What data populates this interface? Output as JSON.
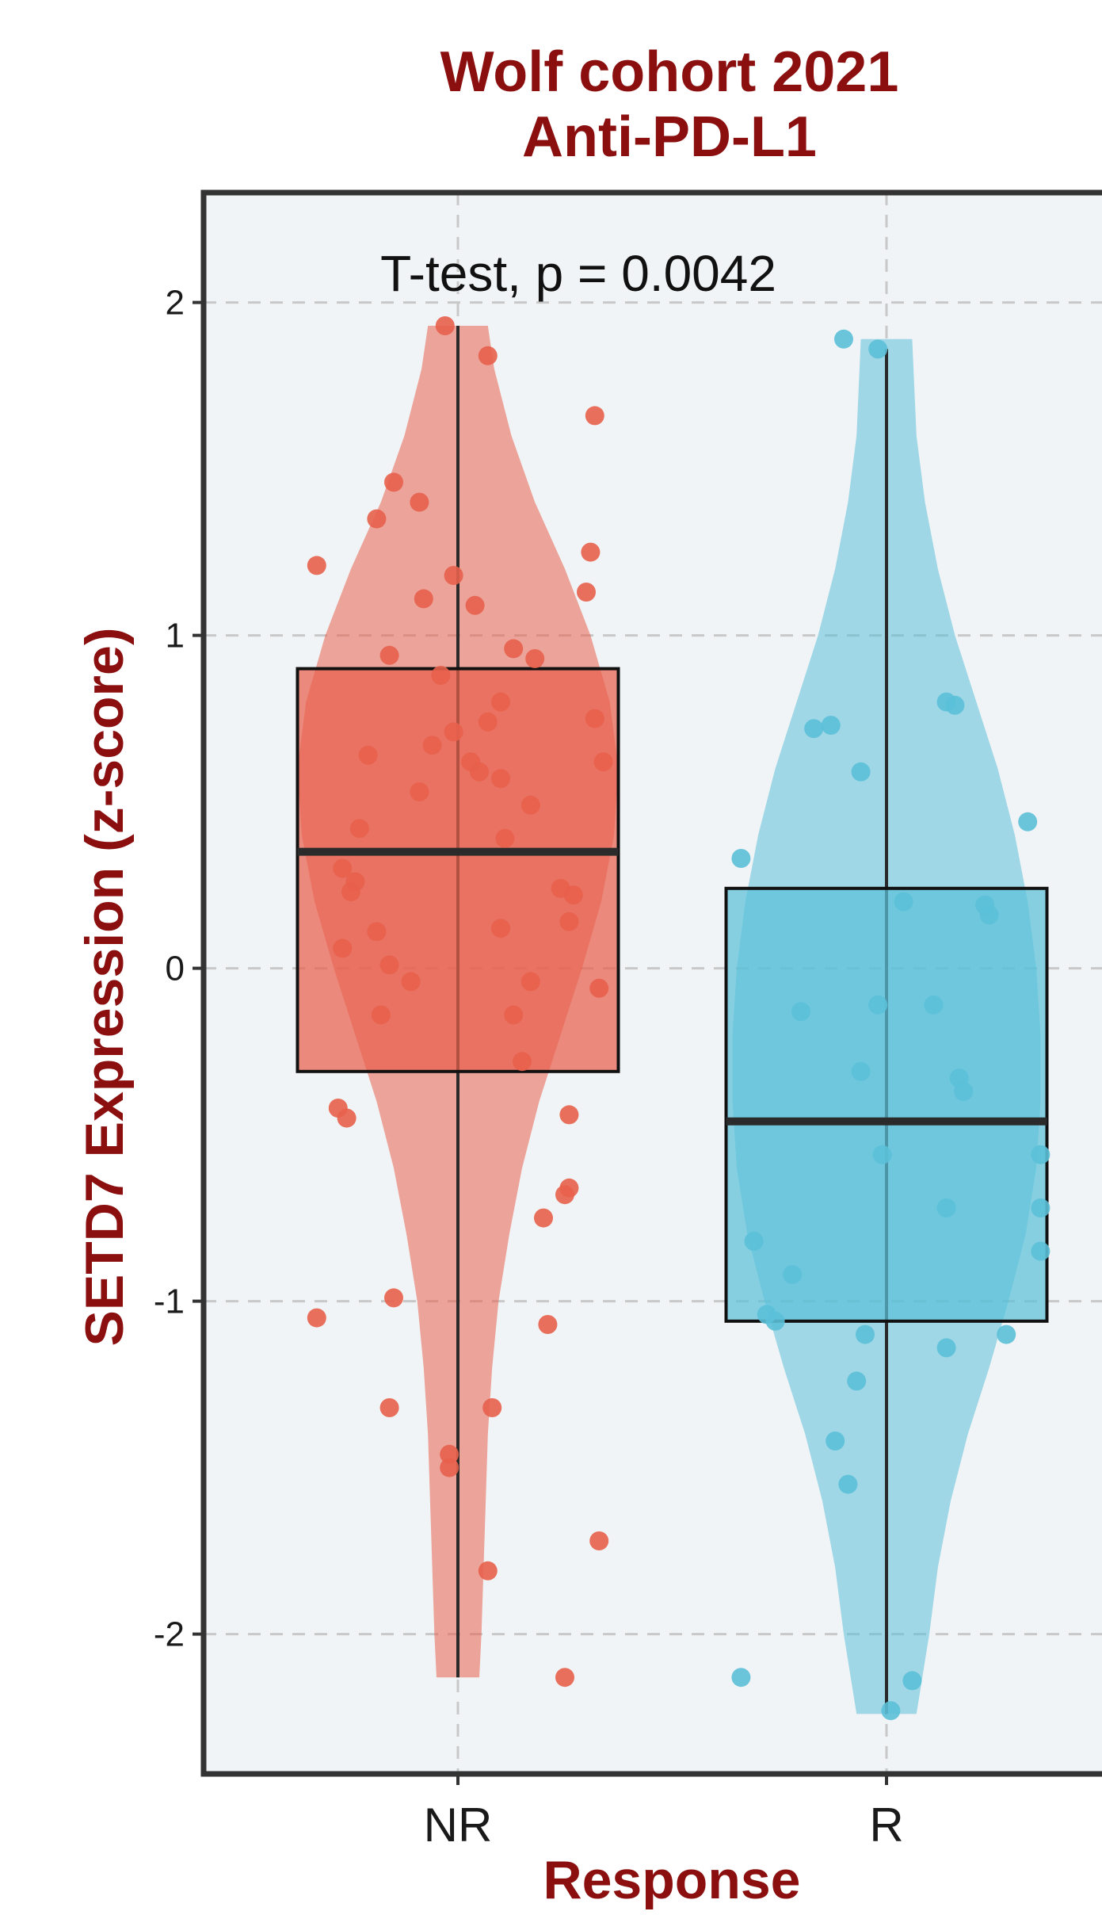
{
  "chart_data": {
    "type": "violin+box+jitter",
    "title": [
      "Wolf cohort 2021",
      "Anti-PD-L1"
    ],
    "xlabel": "Response",
    "ylabel": "SETD7 Expression (z-score)",
    "annotation": "T-test, p = 0.0042",
    "ylim": [
      -2.42,
      2.33
    ],
    "yticks": [
      -2,
      -1,
      0,
      1,
      2
    ],
    "grid": true,
    "colors": {
      "NR": "#e8604c",
      "R": "#5bc0d8",
      "title": "#8b0f0f",
      "panel": "#f1f4f6",
      "frame": "#333333",
      "grid": "#c8c8c8",
      "lines": "#2a2a2a"
    },
    "categories": [
      "NR",
      "R"
    ],
    "groups": [
      {
        "name": "NR",
        "box": {
          "q1": -0.31,
          "median": 0.35,
          "q3": 0.9,
          "whisker_low": -2.13,
          "whisker_high": 1.93
        },
        "violin": {
          "y": [
            1.93,
            1.8,
            1.6,
            1.4,
            1.2,
            1.0,
            0.8,
            0.6,
            0.4,
            0.2,
            0.0,
            -0.2,
            -0.4,
            -0.6,
            -0.8,
            -1.0,
            -1.2,
            -1.4,
            -1.6,
            -1.8,
            -2.0,
            -2.13
          ],
          "width": [
            0.14,
            0.17,
            0.25,
            0.36,
            0.5,
            0.62,
            0.71,
            0.75,
            0.73,
            0.67,
            0.58,
            0.48,
            0.38,
            0.3,
            0.24,
            0.19,
            0.16,
            0.14,
            0.13,
            0.12,
            0.11,
            0.1
          ]
        },
        "points": [
          [
            -0.03,
            1.93
          ],
          [
            0.07,
            1.84
          ],
          [
            0.32,
            1.66
          ],
          [
            -0.15,
            1.46
          ],
          [
            -0.09,
            1.4
          ],
          [
            -0.19,
            1.35
          ],
          [
            -0.33,
            1.21
          ],
          [
            -0.01,
            1.18
          ],
          [
            0.31,
            1.25
          ],
          [
            -0.08,
            1.11
          ],
          [
            0.04,
            1.09
          ],
          [
            0.3,
            1.13
          ],
          [
            -0.16,
            0.94
          ],
          [
            0.13,
            0.96
          ],
          [
            0.18,
            0.93
          ],
          [
            -0.04,
            0.88
          ],
          [
            0.1,
            0.8
          ],
          [
            0.07,
            0.74
          ],
          [
            -0.01,
            0.71
          ],
          [
            0.32,
            0.75
          ],
          [
            -0.06,
            0.67
          ],
          [
            -0.21,
            0.64
          ],
          [
            0.03,
            0.62
          ],
          [
            0.05,
            0.59
          ],
          [
            0.1,
            0.57
          ],
          [
            0.34,
            0.62
          ],
          [
            -0.09,
            0.53
          ],
          [
            0.17,
            0.49
          ],
          [
            -0.23,
            0.42
          ],
          [
            0.11,
            0.39
          ],
          [
            -0.27,
            0.3
          ],
          [
            -0.24,
            0.26
          ],
          [
            -0.25,
            0.23
          ],
          [
            0.24,
            0.24
          ],
          [
            0.27,
            0.22
          ],
          [
            -0.19,
            0.11
          ],
          [
            0.1,
            0.12
          ],
          [
            0.26,
            0.14
          ],
          [
            -0.27,
            0.06
          ],
          [
            -0.16,
            0.01
          ],
          [
            -0.11,
            -0.04
          ],
          [
            0.17,
            -0.04
          ],
          [
            0.33,
            -0.06
          ],
          [
            -0.18,
            -0.14
          ],
          [
            0.13,
            -0.14
          ],
          [
            0.15,
            -0.28
          ],
          [
            -0.28,
            -0.42
          ],
          [
            0.26,
            -0.44
          ],
          [
            -0.26,
            -0.45
          ],
          [
            0.26,
            -0.66
          ],
          [
            0.25,
            -0.68
          ],
          [
            0.2,
            -0.75
          ],
          [
            -0.15,
            -0.99
          ],
          [
            -0.33,
            -1.05
          ],
          [
            0.21,
            -1.07
          ],
          [
            -0.16,
            -1.32
          ],
          [
            0.08,
            -1.32
          ],
          [
            -0.02,
            -1.46
          ],
          [
            -0.02,
            -1.5
          ],
          [
            0.33,
            -1.72
          ],
          [
            0.07,
            -1.81
          ],
          [
            0.25,
            -2.13
          ]
        ]
      },
      {
        "name": "R",
        "box": {
          "q1": -1.06,
          "median": -0.46,
          "q3": 0.24,
          "whisker_low": -2.24,
          "whisker_high": 1.86
        },
        "violin": {
          "y": [
            1.89,
            1.6,
            1.4,
            1.2,
            1.0,
            0.8,
            0.6,
            0.4,
            0.2,
            0.0,
            -0.2,
            -0.4,
            -0.6,
            -0.8,
            -1.0,
            -1.2,
            -1.4,
            -1.6,
            -1.8,
            -2.0,
            -2.2,
            -2.24
          ],
          "width": [
            0.12,
            0.14,
            0.18,
            0.24,
            0.32,
            0.42,
            0.52,
            0.6,
            0.66,
            0.7,
            0.72,
            0.72,
            0.7,
            0.65,
            0.57,
            0.48,
            0.38,
            0.3,
            0.24,
            0.2,
            0.15,
            0.14
          ]
        },
        "points": [
          [
            -0.1,
            1.89
          ],
          [
            -0.02,
            1.86
          ],
          [
            0.14,
            0.8
          ],
          [
            0.16,
            0.79
          ],
          [
            -0.17,
            0.72
          ],
          [
            -0.13,
            0.73
          ],
          [
            -0.06,
            0.59
          ],
          [
            0.33,
            0.44
          ],
          [
            -0.34,
            0.33
          ],
          [
            0.04,
            0.2
          ],
          [
            0.24,
            0.16
          ],
          [
            0.23,
            0.19
          ],
          [
            -0.2,
            -0.13
          ],
          [
            -0.02,
            -0.11
          ],
          [
            0.11,
            -0.11
          ],
          [
            -0.06,
            -0.31
          ],
          [
            0.17,
            -0.33
          ],
          [
            0.18,
            -0.37
          ],
          [
            -0.01,
            -0.56
          ],
          [
            0.36,
            -0.56
          ],
          [
            0.14,
            -0.72
          ],
          [
            0.36,
            -0.72
          ],
          [
            -0.31,
            -0.82
          ],
          [
            0.36,
            -0.85
          ],
          [
            -0.22,
            -0.92
          ],
          [
            -0.28,
            -1.04
          ],
          [
            -0.26,
            -1.06
          ],
          [
            -0.05,
            -1.1
          ],
          [
            0.14,
            -1.14
          ],
          [
            0.28,
            -1.1
          ],
          [
            -0.07,
            -1.24
          ],
          [
            -0.12,
            -1.42
          ],
          [
            -0.09,
            -1.55
          ],
          [
            -0.34,
            -2.13
          ],
          [
            0.06,
            -2.14
          ],
          [
            0.01,
            -2.23
          ]
        ]
      }
    ]
  }
}
